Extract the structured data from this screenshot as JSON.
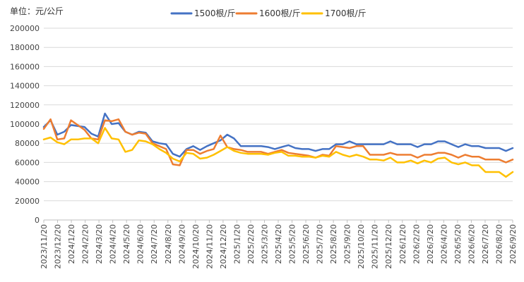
{
  "unit_label": "单位：元/公斤",
  "chart_data": {
    "type": "line",
    "title": "",
    "xlabel": "",
    "ylabel": "",
    "ylim": [
      0,
      200000
    ],
    "yticks": [
      0,
      20000,
      40000,
      60000,
      80000,
      100000,
      120000,
      140000,
      160000,
      180000,
      200000
    ],
    "grid": true,
    "legend_position": "top",
    "x_tick_labels": [
      "2023/11/20",
      "2023/12/20",
      "2024/1/20",
      "2024/2/20",
      "2024/3/20",
      "2024/4/20",
      "2024/5/20",
      "2024/6/20",
      "2024/7/20",
      "2024/8/20",
      "2024/9/20",
      "2024/10/20",
      "2024/11/20",
      "2024/12/20",
      "2025/1/20",
      "2025/2/20",
      "2025/3/20",
      "2025/4/20",
      "2025/5/20",
      "2025/6/20",
      "2025/7/20",
      "2025/8/20",
      "2025/9/20",
      "2025/10/20",
      "2025/11/20",
      "2025/12/20",
      "2026/1/20",
      "2026/2/20",
      "2026/3/20",
      "2026/4/20",
      "2026/5/20",
      "2026/6/20",
      "2026/7/20",
      "2026/8/20",
      "2026/9/20"
    ],
    "series": [
      {
        "name": "1500根/斤",
        "color": "#4472C4",
        "values": [
          97000,
          104000,
          89000,
          92000,
          99000,
          98000,
          97000,
          90000,
          87000,
          111000,
          100000,
          101000,
          92000,
          89000,
          92000,
          91000,
          82000,
          80000,
          79000,
          69000,
          66000,
          74000,
          77000,
          73000,
          77000,
          80000,
          83000,
          89000,
          85000,
          77000,
          77000,
          77000,
          77000,
          76000,
          74000,
          76000,
          78000,
          75000,
          74000,
          74000,
          72000,
          74000,
          74000,
          79000,
          79000,
          82000,
          79000,
          79000,
          79000,
          79000,
          79000,
          82000,
          79000,
          79000,
          79000,
          76000,
          79000,
          79000,
          82000,
          82000,
          79000,
          76000,
          79000,
          77000,
          77000,
          75000,
          75000,
          75000,
          72000,
          75000
        ]
      },
      {
        "name": "1600根/斤",
        "color": "#ED7D31",
        "values": [
          95000,
          105000,
          84000,
          85000,
          104000,
          99000,
          94000,
          85000,
          84000,
          104000,
          103000,
          105000,
          92000,
          89000,
          91000,
          90000,
          80000,
          77000,
          74000,
          58000,
          57000,
          73000,
          73000,
          69000,
          72000,
          74000,
          88000,
          76000,
          74000,
          73000,
          71000,
          71000,
          71000,
          69000,
          71000,
          73000,
          70000,
          69000,
          68000,
          67000,
          65000,
          68000,
          67000,
          77000,
          76000,
          75000,
          77000,
          77000,
          68000,
          68000,
          68000,
          70000,
          68000,
          68000,
          68000,
          65000,
          68000,
          68000,
          70000,
          70000,
          68000,
          65000,
          68000,
          66000,
          66000,
          63000,
          63000,
          63000,
          60000,
          63000
        ]
      },
      {
        "name": "1700根/斤",
        "color": "#FFC000",
        "values": [
          84000,
          86000,
          81000,
          79000,
          84000,
          84000,
          85000,
          85000,
          80000,
          96000,
          85000,
          84000,
          71000,
          73000,
          83000,
          82000,
          79000,
          74000,
          70000,
          64000,
          61000,
          70000,
          69000,
          64000,
          65000,
          68000,
          72000,
          76000,
          72000,
          70000,
          69000,
          69000,
          69000,
          68000,
          70000,
          71000,
          67000,
          67000,
          66000,
          66000,
          65000,
          67000,
          66000,
          71000,
          68000,
          66000,
          68000,
          66000,
          63000,
          63000,
          62000,
          65000,
          60000,
          60000,
          62000,
          59000,
          62000,
          60000,
          64000,
          65000,
          60000,
          58000,
          60000,
          57000,
          57000,
          50000,
          50000,
          50000,
          45000,
          50000
        ]
      }
    ]
  }
}
